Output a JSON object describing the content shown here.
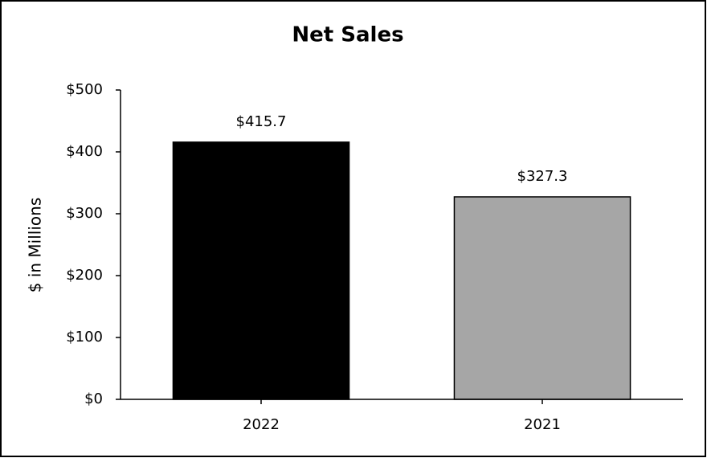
{
  "chart_data": {
    "type": "bar",
    "title": "Net Sales",
    "y_label": "$ in Millions",
    "categories": [
      "2022",
      "2021"
    ],
    "values": [
      415.7,
      327.3
    ],
    "value_labels": [
      "$415.7",
      "$327.3"
    ],
    "colors": [
      "#000000",
      "#a6a6a6"
    ],
    "ylim": [
      0,
      500
    ],
    "yticks": [
      {
        "value": 0,
        "label": "$0"
      },
      {
        "value": 100,
        "label": "$100"
      },
      {
        "value": 200,
        "label": "$200"
      },
      {
        "value": 300,
        "label": "$300"
      },
      {
        "value": 400,
        "label": "$400"
      },
      {
        "value": 500,
        "label": "$500"
      }
    ],
    "grid": false
  }
}
